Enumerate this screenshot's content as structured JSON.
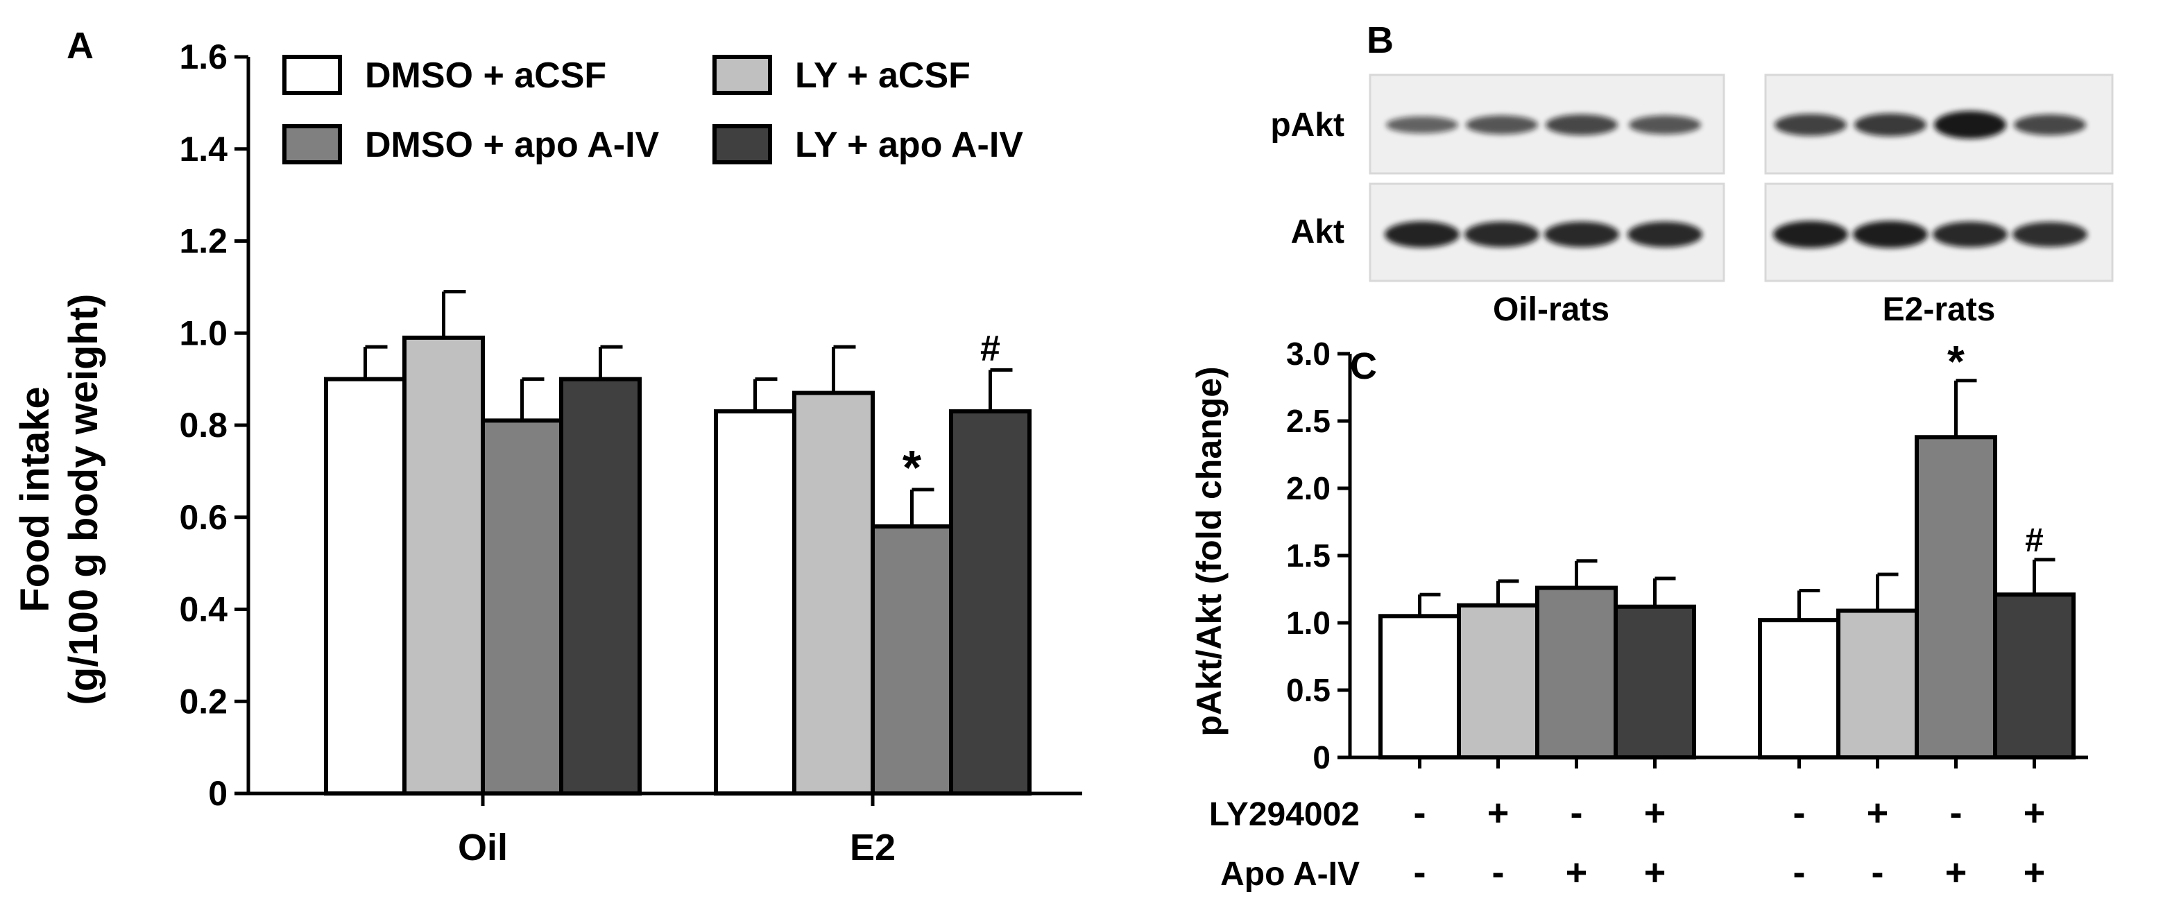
{
  "panels": {
    "a_label": "A",
    "b_label": "B",
    "c_label": "C"
  },
  "colors": {
    "dmso_acsf": "#ffffff",
    "ly_acsf": "#c0c0c0",
    "dmso_apo": "#808080",
    "ly_apo": "#404040"
  },
  "chart_data": [
    {
      "type": "bar",
      "panel": "A",
      "ylabel_line1": "Food intake",
      "ylabel_line2": "(g/100 g body weight)",
      "xlabel": "",
      "categories": [
        "Oil",
        "E2"
      ],
      "ylim": [
        0,
        1.6
      ],
      "yticks": [
        "0",
        "0.2",
        "0.4",
        "0.6",
        "0.8",
        "1.0",
        "1.2",
        "1.4",
        "1.6"
      ],
      "legend_placement": "top",
      "series": [
        {
          "name": "DMSO + aCSF",
          "values": [
            0.9,
            0.83
          ],
          "errors": [
            0.07,
            0.07
          ],
          "marks": [
            "",
            ""
          ]
        },
        {
          "name": "LY + aCSF",
          "values": [
            0.99,
            0.87
          ],
          "errors": [
            0.1,
            0.1
          ],
          "marks": [
            "",
            ""
          ]
        },
        {
          "name": "DMSO + apo A-IV",
          "values": [
            0.81,
            0.58
          ],
          "errors": [
            0.09,
            0.08
          ],
          "marks": [
            "",
            "*"
          ]
        },
        {
          "name": "LY + apo A-IV",
          "values": [
            0.9,
            0.83
          ],
          "errors": [
            0.07,
            0.09
          ],
          "marks": [
            "",
            "#"
          ]
        }
      ]
    },
    {
      "type": "bar",
      "panel": "C",
      "ylabel": "pAkt/Akt (fold change)",
      "xlabel": "",
      "group_count": 2,
      "ylim": [
        0,
        3.0
      ],
      "yticks": [
        "0",
        "0.5",
        "1.0",
        "1.5",
        "2.0",
        "2.5",
        "3.0"
      ],
      "series_values": [
        {
          "values": [
            1.05,
            1.02
          ],
          "errors": [
            0.16,
            0.22
          ],
          "marks": [
            "",
            ""
          ]
        },
        {
          "values": [
            1.13,
            1.09
          ],
          "errors": [
            0.18,
            0.27
          ],
          "marks": [
            "",
            ""
          ]
        },
        {
          "values": [
            1.26,
            2.38
          ],
          "errors": [
            0.2,
            0.42
          ],
          "marks": [
            "",
            "*"
          ]
        },
        {
          "values": [
            1.12,
            1.21
          ],
          "errors": [
            0.21,
            0.26
          ],
          "marks": [
            "",
            "#"
          ]
        }
      ],
      "treatment_rows": [
        {
          "label": "LY294002",
          "signs": [
            "-",
            "+",
            "-",
            "+",
            "-",
            "+",
            "-",
            "+"
          ]
        },
        {
          "label": "Apo A-IV",
          "signs": [
            "-",
            "-",
            "+",
            "+",
            "-",
            "-",
            "+",
            "+"
          ]
        }
      ]
    }
  ],
  "blot": {
    "row_labels": [
      "pAkt",
      "Akt"
    ],
    "group_labels": [
      "Oil-rats",
      "E2-rats"
    ],
    "band_intensity": {
      "pakt": [
        [
          0.45,
          0.55,
          0.65,
          0.55
        ],
        [
          0.7,
          0.75,
          1.0,
          0.65
        ]
      ],
      "akt": [
        [
          0.9,
          0.85,
          0.85,
          0.85
        ],
        [
          0.95,
          0.95,
          0.85,
          0.8
        ]
      ]
    }
  }
}
